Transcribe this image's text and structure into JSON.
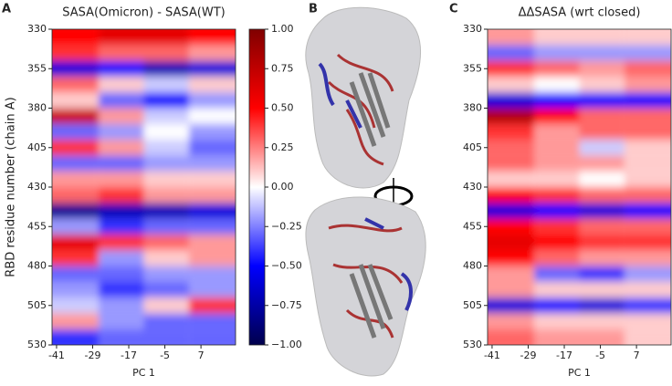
{
  "panel_labels": [
    "A",
    "B",
    "C"
  ],
  "chart_data": [
    {
      "type": "heatmap",
      "title": "SASA(Omicron) - SASA(WT)",
      "xlabel": "PC 1",
      "ylabel": "RBD residue number (chain A)",
      "xlim": [
        -42.5,
        18.5
      ],
      "xticks": [
        -41,
        -29,
        -17,
        -5,
        7
      ],
      "ylim": [
        330,
        530
      ],
      "y_inverted": true,
      "yticks": [
        330,
        355,
        380,
        405,
        430,
        455,
        480,
        505,
        530
      ],
      "xbins": [
        -42.5,
        -27,
        -12,
        3,
        18.5
      ],
      "ybins": [
        330,
        340,
        350,
        360,
        370,
        380,
        390,
        400,
        410,
        420,
        430,
        440,
        450,
        460,
        470,
        480,
        490,
        500,
        510,
        520,
        530
      ],
      "values": [
        [
          0.5,
          0.6,
          0.6,
          0.5
        ],
        [
          0.4,
          0.3,
          0.3,
          0.2
        ],
        [
          -0.6,
          -0.5,
          -0.7,
          -0.6
        ],
        [
          0.3,
          0.1,
          -0.1,
          0.1
        ],
        [
          0.1,
          -0.3,
          -0.5,
          -0.2
        ],
        [
          0.7,
          0.2,
          -0.1,
          0.0
        ],
        [
          -0.3,
          -0.2,
          0.0,
          -0.2
        ],
        [
          0.4,
          0.2,
          -0.1,
          -0.3
        ],
        [
          -0.3,
          -0.3,
          -0.2,
          -0.2
        ],
        [
          0.2,
          0.2,
          0.1,
          0.1
        ],
        [
          0.3,
          0.4,
          0.2,
          0.2
        ],
        [
          -0.8,
          -0.7,
          -0.7,
          -0.6
        ],
        [
          -0.2,
          -0.4,
          -0.3,
          -0.3
        ],
        [
          0.6,
          0.4,
          0.3,
          0.2
        ],
        [
          0.4,
          -0.2,
          0.1,
          0.2
        ],
        [
          -0.3,
          -0.3,
          -0.2,
          -0.2
        ],
        [
          -0.2,
          -0.4,
          -0.3,
          -0.2
        ],
        [
          -0.1,
          -0.2,
          0.1,
          0.4
        ],
        [
          0.2,
          -0.2,
          -0.3,
          -0.3
        ],
        [
          -0.4,
          -0.3,
          -0.3,
          -0.3
        ]
      ],
      "colormap": "seismic",
      "clim": [
        -1,
        1
      ],
      "colorbar_ticks": [
        {
          "value": 1,
          "label": "1.00"
        },
        {
          "value": 0.75,
          "label": "0.75"
        },
        {
          "value": 0.5,
          "label": "0.50"
        },
        {
          "value": 0.25,
          "label": "0.25"
        },
        {
          "value": 0,
          "label": "0.00"
        },
        {
          "value": -0.25,
          "label": "−0.25"
        },
        {
          "value": -0.5,
          "label": "−0.50"
        },
        {
          "value": -0.75,
          "label": "−0.75"
        },
        {
          "value": -1,
          "label": "−1.00"
        }
      ]
    },
    {
      "type": "heatmap",
      "title": "ΔΔSASA (wrt closed)",
      "xlabel": "PC 1",
      "xlim": [
        -42.5,
        18.5
      ],
      "xticks": [
        -41,
        -29,
        -17,
        -5,
        7
      ],
      "ylim": [
        330,
        530
      ],
      "y_inverted": true,
      "yticks": [
        330,
        355,
        380,
        405,
        430,
        455,
        480,
        505,
        530
      ],
      "xbins": [
        -42.5,
        -27,
        -12,
        3,
        18.5
      ],
      "ybins": [
        330,
        340,
        350,
        360,
        370,
        380,
        390,
        400,
        410,
        420,
        430,
        440,
        450,
        460,
        470,
        480,
        490,
        500,
        510,
        520,
        530
      ],
      "values": [
        [
          0.2,
          0.1,
          0.1,
          0.1
        ],
        [
          -0.3,
          -0.2,
          -0.2,
          -0.2
        ],
        [
          0.4,
          0.3,
          0.2,
          0.3
        ],
        [
          0.1,
          0.0,
          0.1,
          0.2
        ],
        [
          -0.6,
          -0.5,
          -0.5,
          -0.5
        ],
        [
          0.8,
          0.5,
          0.3,
          0.3
        ],
        [
          0.4,
          0.2,
          0.3,
          0.3
        ],
        [
          0.3,
          0.2,
          -0.1,
          0.1
        ],
        [
          0.3,
          0.2,
          0.2,
          0.1
        ],
        [
          0.1,
          0.1,
          0.0,
          0.1
        ],
        [
          0.5,
          0.4,
          0.3,
          0.3
        ],
        [
          -0.6,
          -0.5,
          -0.6,
          -0.5
        ],
        [
          0.5,
          0.4,
          0.3,
          0.3
        ],
        [
          0.6,
          0.5,
          0.4,
          0.4
        ],
        [
          0.5,
          0.3,
          0.2,
          0.2
        ],
        [
          0.2,
          -0.3,
          -0.4,
          -0.2
        ],
        [
          0.2,
          0.1,
          0.1,
          0.1
        ],
        [
          -0.6,
          -0.5,
          -0.6,
          -0.4
        ],
        [
          0.2,
          0.1,
          0.1,
          0.1
        ],
        [
          0.3,
          0.2,
          0.2,
          0.1
        ]
      ],
      "colormap": "seismic",
      "clim": [
        -1,
        1
      ]
    }
  ]
}
